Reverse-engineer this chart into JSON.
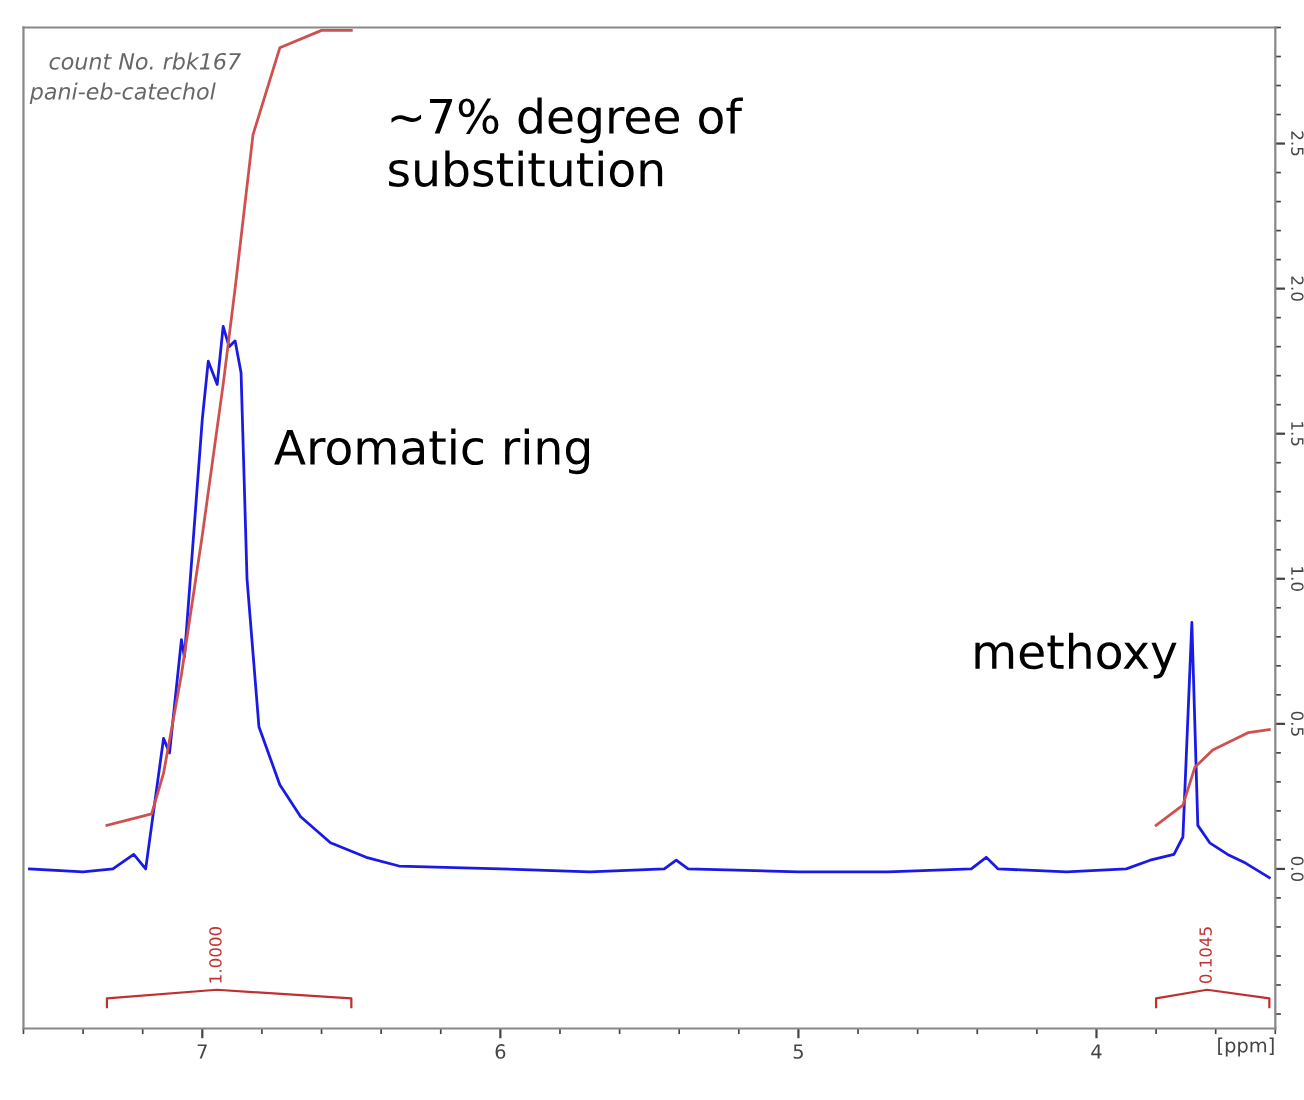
{
  "chart_data": {
    "type": "line",
    "x": [
      7.58,
      7.4,
      7.3,
      7.23,
      7.19,
      7.13,
      7.11,
      7.07,
      7.06,
      7.0,
      6.98,
      6.95,
      6.93,
      6.91,
      6.89,
      6.87,
      6.85,
      6.81,
      6.74,
      6.67,
      6.57,
      6.45,
      6.34,
      6.0,
      5.7,
      5.45,
      5.41,
      5.37,
      5.0,
      4.7,
      4.42,
      4.37,
      4.33,
      4.1,
      3.9,
      3.82,
      3.74,
      3.71,
      3.68,
      3.66,
      3.62,
      3.56,
      3.5,
      3.42
    ],
    "series": [
      {
        "color": "#1a1ae6",
        "values": [
          0.0,
          -0.01,
          0.0,
          0.05,
          0.0,
          0.45,
          0.4,
          0.79,
          0.73,
          1.55,
          1.75,
          1.67,
          1.87,
          1.8,
          1.82,
          1.71,
          1.0,
          0.49,
          0.29,
          0.18,
          0.09,
          0.04,
          0.01,
          0.0,
          -0.01,
          0.0,
          0.03,
          0.0,
          -0.01,
          -0.01,
          0.0,
          0.04,
          0.0,
          -0.01,
          0.0,
          0.03,
          0.05,
          0.11,
          0.85,
          0.15,
          0.09,
          0.05,
          0.02,
          -0.03
        ]
      },
      {
        "color": "#d05050",
        "x": [
          7.32,
          7.17,
          7.13,
          7.07,
          7.0,
          6.93,
          6.89,
          6.83,
          6.74,
          6.6,
          6.5
        ],
        "values": [
          0.15,
          0.19,
          0.33,
          0.67,
          1.15,
          1.67,
          2.0,
          2.53,
          2.83,
          2.89,
          2.89
        ]
      },
      {
        "color": "#d05050",
        "x": [
          3.8,
          3.71,
          3.67,
          3.61,
          3.49,
          3.42
        ],
        "values": [
          0.15,
          0.22,
          0.35,
          0.41,
          0.47,
          0.48
        ]
      }
    ],
    "xlabel": "[ppm]",
    "xlim": [
      7.6,
      3.4
    ],
    "xticks": [
      7,
      6,
      5,
      4
    ],
    "ylim": [
      -0.55,
      2.9
    ],
    "yticks": [
      {
        "value": 0.0,
        "label": "0.0"
      },
      0.5,
      {
        "value": 1.0,
        "label": "1.0"
      },
      1.5,
      {
        "value": 2.0,
        "label": "2.0"
      },
      2.5
    ],
    "grid": false,
    "annotations": [
      "count No. rbk167",
      "pani-eb-catechol",
      "~7% degree of\nsubstitution",
      {
        "text": "Aromatic ring",
        "x": 6.9,
        "y": 1.87
      },
      {
        "text": "methoxy",
        "x": 3.68,
        "y": 0.85
      },
      "1.0000",
      "0.1045"
    ]
  }
}
